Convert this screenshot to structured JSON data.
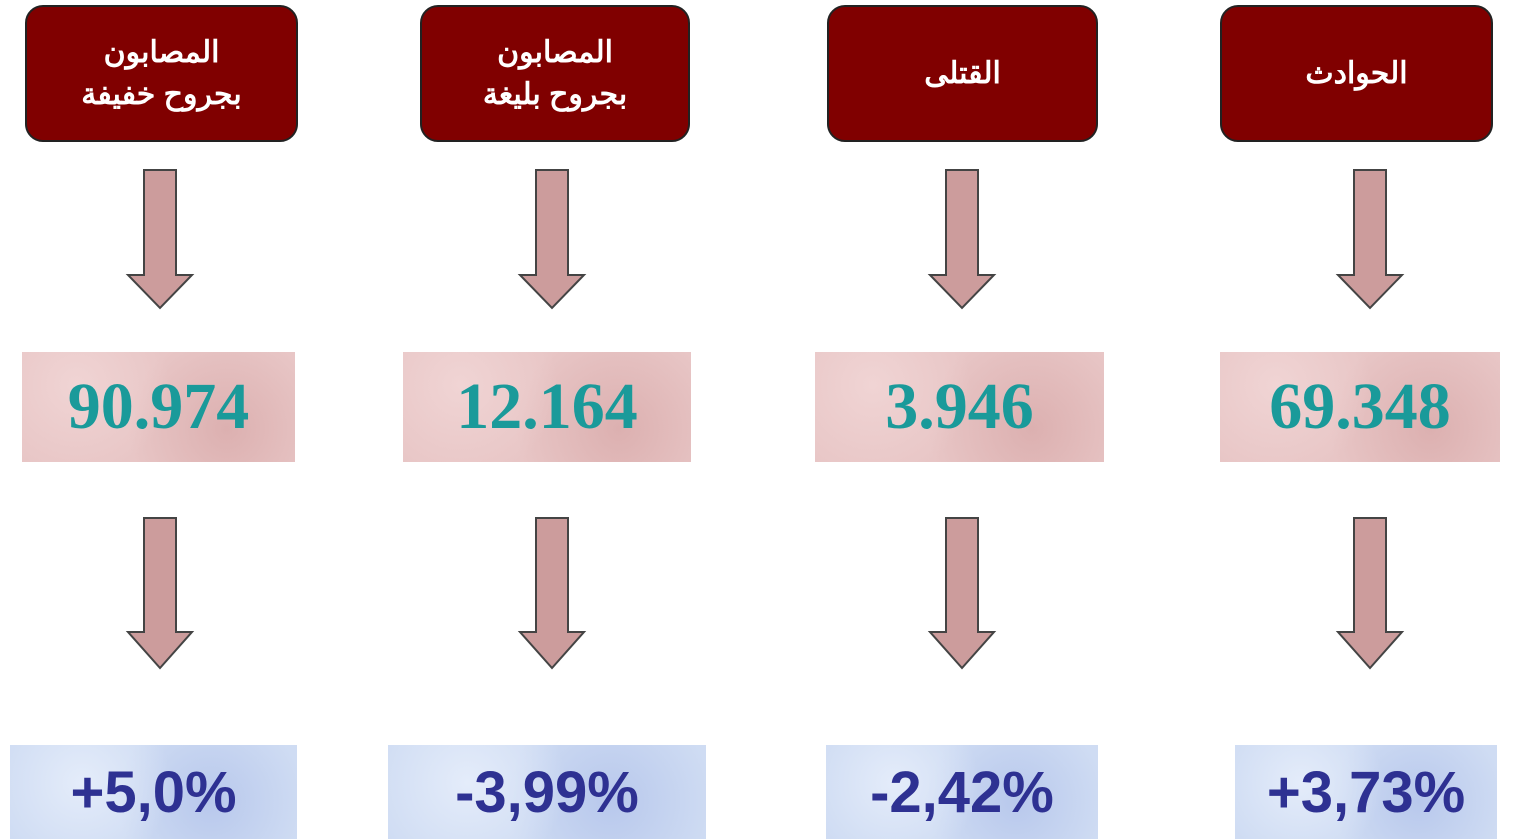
{
  "columns": [
    {
      "header": [
        "المصابون",
        "بجروح خفيفة"
      ],
      "value": "90.974",
      "change": "+5,0%"
    },
    {
      "header": [
        "المصابون",
        "بجروح بليغة"
      ],
      "value": "12.164",
      "change": "-3,99%"
    },
    {
      "header": [
        "القتلى"
      ],
      "value": "3.946",
      "change": "-2,42%"
    },
    {
      "header": [
        "الحوادث"
      ],
      "value": "69.348",
      "change": "+3,73%"
    }
  ]
}
